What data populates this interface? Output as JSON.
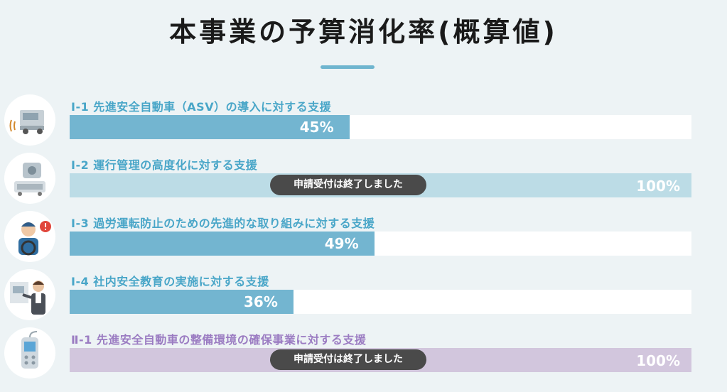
{
  "page": {
    "title": "本事業の予算消化率(概算値)"
  },
  "colors": {
    "blue": "#73b5d0",
    "lightblue": "#bcdce6",
    "purple": "#d2c6dd",
    "purple_text": "#9b7cc2",
    "label_blue": "#49a6c8"
  },
  "items": [
    {
      "label": "Ⅰ-1 先進安全自動車（ASV）の導入に対する支援",
      "value": 45,
      "pct_text": "45%",
      "icon": "truck-sensor-icon",
      "closed": false
    },
    {
      "label": "Ⅰ-2 運行管理の高度化に対する支援",
      "value": 100,
      "pct_text": "100%",
      "icon": "dashcam-icon",
      "closed": true,
      "badge": "申請受付は終了しました"
    },
    {
      "label": "Ⅰ-3 過労運転防止のための先進的な取り組みに対する支援",
      "value": 49,
      "pct_text": "49%",
      "icon": "tired-driver-icon",
      "closed": false
    },
    {
      "label": "Ⅰ-4 社内安全教育の実施に対する支援",
      "value": 36,
      "pct_text": "36%",
      "icon": "instructor-icon",
      "closed": false
    },
    {
      "label": "Ⅱ-1 先進安全自動車の整備環境の確保事業に対する支援",
      "value": 100,
      "pct_text": "100%",
      "icon": "diagnostic-scanner-icon",
      "closed": true,
      "badge": "申請受付は終了しました"
    }
  ]
}
